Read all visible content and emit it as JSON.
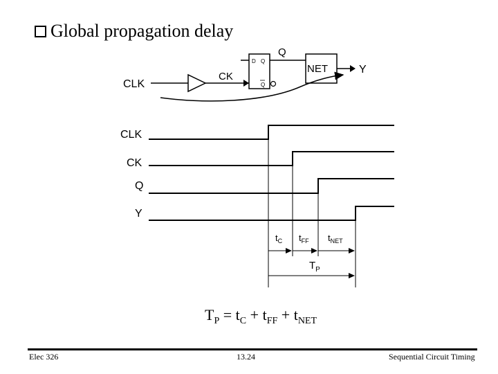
{
  "slide": {
    "bullet_icon": "hollow-square-bullet",
    "title": "Global propagation delay"
  },
  "circuit": {
    "clk_label": "CLK",
    "ck_label": "CK",
    "q_label": "Q",
    "ff_d_label": "D",
    "ff_q_label": "Q",
    "ff_qbar_label": "Q",
    "net_label": "NET",
    "y_label": "Y"
  },
  "waveforms": {
    "signals": [
      "CLK",
      "CK",
      "Q",
      "Y"
    ],
    "intervals": [
      {
        "t": "t",
        "sub": "C"
      },
      {
        "t": "t",
        "sub": "FF"
      },
      {
        "t": "t",
        "sub": "NET"
      }
    ],
    "total": {
      "t": "T",
      "sub": "P"
    }
  },
  "formula": {
    "lhs": "T",
    "lhs_sub": "P",
    "eq": " = ",
    "t1": "t",
    "t1_sub": "C",
    "plus1": " + ",
    "t2": "t",
    "t2_sub": "FF",
    "plus2": " + ",
    "t3": "t",
    "t3_sub": "NET"
  },
  "footer": {
    "left": "Elec 326",
    "center": "13.24",
    "right": "Sequential Circuit Timing"
  }
}
